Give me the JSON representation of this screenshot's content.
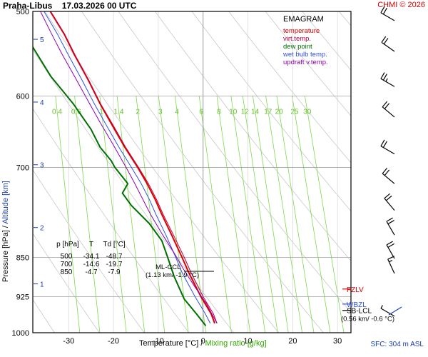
{
  "header": {
    "station": "Praha-Libus",
    "datetime": "17.03.2026 00 UTC",
    "copyright": "CHMI © 2026"
  },
  "footer": {
    "sfc": "SFC: 304 m ASL"
  },
  "chart_data": {
    "type": "line",
    "title": "EMAGRAM",
    "xlabel": "Temperature [°C]",
    "xlabel_sep": "/",
    "xlabel2": "Mixing ratio [g/kg]",
    "ylabel": "Pressure [hPa]",
    "ylabel_sep": "/",
    "ylabel2": "Altitude [km]",
    "xlim": [
      -38,
      33
    ],
    "ylim": [
      1000,
      500
    ],
    "y_scale": "log-pressure",
    "grid": true,
    "legend_position": "top-right",
    "x_ticks": [
      -30,
      -20,
      -10,
      0,
      10,
      20,
      30
    ],
    "pressure_ticks": [
      500,
      600,
      700,
      850,
      925,
      1000
    ],
    "altitude_ticks": [
      {
        "label": "1",
        "p": 900
      },
      {
        "label": "2",
        "p": 797
      },
      {
        "label": "3",
        "p": 696
      },
      {
        "label": "4",
        "p": 608
      },
      {
        "label": "5",
        "p": 531
      }
    ],
    "mixing_ratio_labels": [
      "0.4",
      "0.6",
      "1",
      "1.4",
      "2",
      "3",
      "4",
      "6",
      "8",
      "10",
      "12",
      "14",
      "17",
      "20",
      "25",
      "30"
    ],
    "series": [
      {
        "name": "temperature",
        "color": "#dd0000",
        "width": 2,
        "points": [
          [
            2.6,
            980
          ],
          [
            1.8,
            960
          ],
          [
            -0.5,
            925
          ],
          [
            -3.1,
            880
          ],
          [
            -4.7,
            850
          ],
          [
            -7,
            810
          ],
          [
            -9.2,
            775
          ],
          [
            -10.7,
            750
          ],
          [
            -12.5,
            725
          ],
          [
            -14.6,
            700
          ],
          [
            -17.5,
            670
          ],
          [
            -20.2,
            640
          ],
          [
            -23,
            610
          ],
          [
            -25.6,
            580
          ],
          [
            -28.6,
            550
          ],
          [
            -31,
            525
          ],
          [
            -34.1,
            500
          ]
        ]
      },
      {
        "name": "virt.temp.",
        "color": "#c00040",
        "width": 1,
        "points": [
          [
            3.1,
            980
          ],
          [
            2.3,
            960
          ],
          [
            0,
            925
          ],
          [
            -2.6,
            880
          ],
          [
            -4.2,
            850
          ],
          [
            -6.6,
            810
          ],
          [
            -8.9,
            775
          ],
          [
            -10.4,
            750
          ],
          [
            -12.2,
            725
          ],
          [
            -14.4,
            700
          ],
          [
            -17.3,
            670
          ],
          [
            -20,
            640
          ],
          [
            -22.9,
            610
          ],
          [
            -25.5,
            580
          ],
          [
            -28.5,
            550
          ],
          [
            -30.9,
            525
          ],
          [
            -34,
            500
          ]
        ]
      },
      {
        "name": "dew point",
        "color": "#007000",
        "width": 2,
        "points": [
          [
            0.6,
            985
          ],
          [
            -1.5,
            960
          ],
          [
            -4.2,
            930
          ],
          [
            -6.5,
            885
          ],
          [
            -7.9,
            850
          ],
          [
            -9.2,
            820
          ],
          [
            -12,
            790
          ],
          [
            -16,
            760
          ],
          [
            -18,
            740
          ],
          [
            -16.8,
            725
          ],
          [
            -19.7,
            700
          ],
          [
            -20.5,
            690
          ],
          [
            -23,
            670
          ],
          [
            -25,
            645
          ],
          [
            -29,
            610
          ],
          [
            -34,
            575
          ],
          [
            -38,
            540
          ],
          [
            -44,
            520
          ],
          [
            -48.7,
            500
          ]
        ]
      },
      {
        "name": "wet bulb temp.",
        "color": "#3050e0",
        "width": 1,
        "points": [
          [
            1.6,
            980
          ],
          [
            0.5,
            960
          ],
          [
            -1.8,
            925
          ],
          [
            -4.6,
            880
          ],
          [
            -6.1,
            850
          ],
          [
            -8.3,
            810
          ],
          [
            -10.5,
            775
          ],
          [
            -12,
            750
          ],
          [
            -13.8,
            725
          ],
          [
            -16,
            700
          ],
          [
            -18.8,
            670
          ],
          [
            -21.5,
            640
          ],
          [
            -24.3,
            610
          ],
          [
            -27,
            580
          ],
          [
            -30,
            550
          ],
          [
            -32.5,
            525
          ],
          [
            -35.5,
            500
          ]
        ]
      },
      {
        "name": "updraft v.temp.",
        "color": "#9000b0",
        "width": 1,
        "points": [
          [
            3.1,
            980
          ],
          [
            0.8,
            940
          ],
          [
            -1.9,
            905
          ],
          [
            -4.5,
            870
          ],
          [
            -6.6,
            840
          ],
          [
            -9,
            810
          ],
          [
            -11.7,
            775
          ],
          [
            -13.8,
            745
          ],
          [
            -15.6,
            720
          ],
          [
            -17.2,
            700
          ],
          [
            -20.2,
            665
          ],
          [
            -23,
            635
          ],
          [
            -25.8,
            605
          ],
          [
            -28.7,
            575
          ],
          [
            -31.5,
            548
          ],
          [
            -33.8,
            525
          ],
          [
            -36.3,
            500
          ]
        ]
      }
    ],
    "wind_profile": [
      {
        "p": 510,
        "speed_kt": 20,
        "dir": 300
      },
      {
        "p": 545,
        "speed_kt": 20,
        "dir": 305
      },
      {
        "p": 588,
        "speed_kt": 25,
        "dir": 300
      },
      {
        "p": 628,
        "speed_kt": 20,
        "dir": 310
      },
      {
        "p": 680,
        "speed_kt": 20,
        "dir": 300
      },
      {
        "p": 725,
        "speed_kt": 20,
        "dir": 310
      },
      {
        "p": 768,
        "speed_kt": 20,
        "dir": 320
      },
      {
        "p": 810,
        "speed_kt": 20,
        "dir": 330
      },
      {
        "p": 852,
        "speed_kt": 20,
        "dir": 330
      },
      {
        "p": 880,
        "speed_kt": 15,
        "dir": 335
      },
      {
        "p": 965,
        "speed_kt": 5,
        "dir": 300
      }
    ],
    "table": {
      "headers": [
        "p [hPa]",
        "T",
        "Td [°C]"
      ],
      "rows": [
        [
          "500",
          "-34.1",
          "-48.7"
        ],
        [
          "700",
          "-14.6",
          "-19.7"
        ],
        [
          "850",
          "-4.7",
          "-7.9"
        ]
      ]
    },
    "annotations": {
      "ml_ccl": {
        "label": "ML-CCL",
        "sub": "(1.13 km/ -1.9 °C)",
        "p": 880
      },
      "fzlv": {
        "label": "FZLV",
        "p": 910
      },
      "wbzl": {
        "label": "WBZL",
        "p": 940
      },
      "sb_lcl": {
        "label": "SB-LCL",
        "sub": "(0.56 km/ -0.6 °C)",
        "p": 953
      }
    }
  }
}
